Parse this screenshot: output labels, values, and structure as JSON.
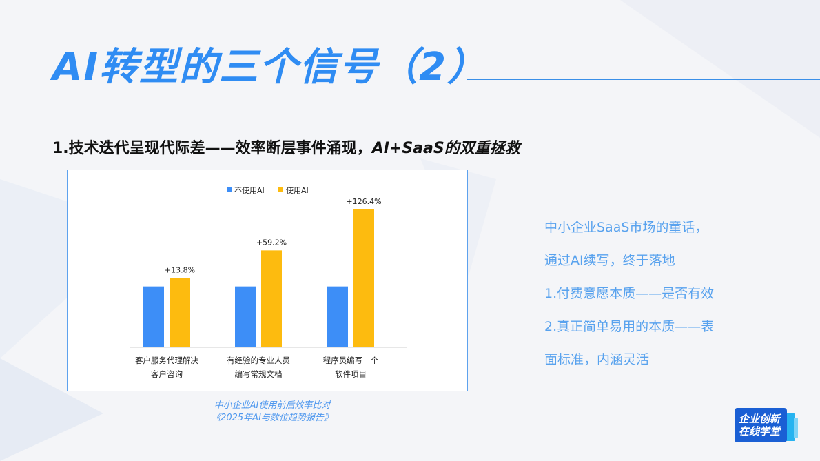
{
  "slide": {
    "title": "AI转型的三个信号（2）",
    "subtitle_part1": "1.技术迭代呈现代际差",
    "subtitle_part2": "——效率断层事件涌现，",
    "subtitle_part3": "AI+SaaS的双重拯救"
  },
  "chart_data": {
    "type": "bar",
    "categories": [
      "客户服务代理解决客户咨询",
      "有经验的专业人员编写常规文档",
      "程序员编写一个软件项目"
    ],
    "category_lines": [
      [
        "客户服务代理解决",
        "客户咨询"
      ],
      [
        "有经验的专业人员",
        "编写常规文档"
      ],
      [
        "程序员编写一个",
        "软件项目"
      ]
    ],
    "series": [
      {
        "name": "不使用AI",
        "values": [
          100,
          100,
          100
        ],
        "color": "#3d8ef7"
      },
      {
        "name": "使用AI",
        "values": [
          113.8,
          159.2,
          226.4
        ],
        "color": "#fdbb0f"
      }
    ],
    "data_labels": [
      "+13.8%",
      "+59.2%",
      "+126.4%"
    ],
    "legend_position": "top-center",
    "grid": false
  },
  "legend": {
    "no_ai": "不使用AI",
    "with_ai": "使用AI"
  },
  "caption": {
    "line1": "中小企业AI使用前后效率比对",
    "line2": "《2025年AI与数位趋势报告》"
  },
  "side_notes": [
    "中小企业SaaS市场的童话，",
    "通过AI续写，终于落地",
    "1.付费意愿本质——是否有效",
    "2.真正简单易用的本质——表",
    "面标准，内涵灵活"
  ],
  "logo": {
    "line1": "企业创新",
    "line2": "在线学堂"
  },
  "colors": {
    "accent": "#2f8cf3",
    "bar_blue": "#3d8ef7",
    "bar_yellow": "#fdbb0f"
  }
}
